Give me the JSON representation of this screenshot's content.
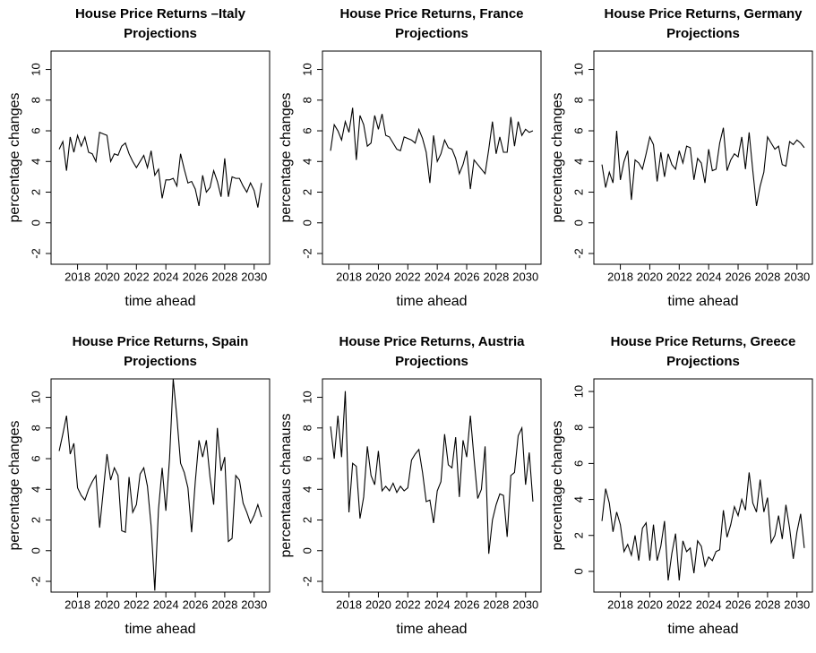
{
  "chart_data": [
    {
      "type": "line",
      "title": "House Price Returns –Italy",
      "subtitle": "Projections",
      "x_label": "time ahead",
      "y_label": "percentage changes",
      "color": "#000000",
      "x": [
        2016.75,
        2017,
        2017.25,
        2017.5,
        2017.75,
        2018,
        2018.25,
        2018.5,
        2018.75,
        2019,
        2019.25,
        2019.5,
        2019.75,
        2020,
        2020.25,
        2020.5,
        2020.75,
        2021,
        2021.25,
        2021.5,
        2021.75,
        2022,
        2022.25,
        2022.5,
        2022.75,
        2023,
        2023.25,
        2023.5,
        2023.75,
        2024,
        2024.25,
        2024.5,
        2024.75,
        2025,
        2025.25,
        2025.5,
        2025.75,
        2026,
        2026.25,
        2026.5,
        2026.75,
        2027,
        2027.25,
        2027.5,
        2027.75,
        2028,
        2028.25,
        2028.5,
        2028.75,
        2029,
        2029.25,
        2029.5,
        2029.75,
        2030,
        2030.25,
        2030.5
      ],
      "values": [
        4.8,
        5.3,
        3.4,
        5.6,
        4.6,
        5.7,
        5.0,
        5.6,
        4.6,
        4.5,
        4.0,
        5.9,
        5.8,
        5.7,
        4.0,
        4.5,
        4.4,
        5.0,
        5.2,
        4.5,
        4.0,
        3.6,
        4.0,
        4.4,
        3.6,
        4.7,
        3.1,
        3.5,
        1.6,
        2.8,
        2.8,
        2.9,
        2.4,
        4.5,
        3.5,
        2.6,
        2.7,
        2.2,
        1.1,
        3.1,
        2.0,
        2.3,
        3.4,
        2.7,
        1.7,
        4.2,
        1.7,
        3.0,
        2.9,
        2.9,
        2.4,
        2.0,
        2.6,
        2.1,
        1.0,
        2.6
      ],
      "xlim": [
        2016.2,
        2031.05
      ],
      "xticks": [
        2018,
        2020,
        2022,
        2024,
        2026,
        2028,
        2030
      ],
      "ylim": [
        -2.7,
        11.2
      ],
      "yticks": [
        -2,
        0,
        2,
        4,
        6,
        8,
        10
      ]
    },
    {
      "type": "line",
      "title": "House Price Returns, France",
      "subtitle": "Projections",
      "x_label": "time ahead",
      "y_label": "percentage changes",
      "color": "#000000",
      "x": [
        2016.75,
        2017,
        2017.25,
        2017.5,
        2017.75,
        2018,
        2018.25,
        2018.5,
        2018.75,
        2019,
        2019.25,
        2019.5,
        2019.75,
        2020,
        2020.25,
        2020.5,
        2020.75,
        2021,
        2021.25,
        2021.5,
        2021.75,
        2022,
        2022.25,
        2022.5,
        2022.75,
        2023,
        2023.25,
        2023.5,
        2023.75,
        2024,
        2024.25,
        2024.5,
        2024.75,
        2025,
        2025.25,
        2025.5,
        2025.75,
        2026,
        2026.25,
        2026.5,
        2026.75,
        2027,
        2027.25,
        2027.5,
        2027.75,
        2028,
        2028.25,
        2028.5,
        2028.75,
        2029,
        2029.25,
        2029.5,
        2029.75,
        2030,
        2030.25,
        2030.5
      ],
      "values": [
        4.7,
        6.4,
        6.0,
        5.4,
        6.6,
        5.9,
        7.5,
        4.1,
        7.0,
        6.4,
        5.0,
        5.2,
        7.0,
        6.1,
        7.1,
        5.7,
        5.6,
        5.2,
        4.8,
        4.7,
        5.6,
        5.5,
        5.4,
        5.2,
        6.1,
        5.5,
        4.6,
        2.6,
        5.7,
        4.0,
        4.5,
        5.4,
        4.9,
        4.8,
        4.2,
        3.2,
        3.8,
        4.7,
        2.2,
        4.1,
        3.8,
        3.5,
        3.2,
        4.8,
        6.6,
        4.5,
        5.6,
        4.6,
        4.6,
        6.9,
        5.0,
        6.6,
        5.7,
        6.1,
        5.9,
        6.0
      ],
      "xlim": [
        2016.2,
        2031.05
      ],
      "xticks": [
        2018,
        2020,
        2022,
        2024,
        2026,
        2028,
        2030
      ],
      "ylim": [
        -2.7,
        11.2
      ],
      "yticks": [
        -2,
        0,
        2,
        4,
        6,
        8,
        10
      ]
    },
    {
      "type": "line",
      "title": "House Price Returns, Germany",
      "subtitle": "Projections",
      "x_label": "time ahead",
      "y_label": "percentage changes",
      "color": "#000000",
      "x": [
        2016.75,
        2017,
        2017.25,
        2017.5,
        2017.75,
        2018,
        2018.25,
        2018.5,
        2018.75,
        2019,
        2019.25,
        2019.5,
        2019.75,
        2020,
        2020.25,
        2020.5,
        2020.75,
        2021,
        2021.25,
        2021.5,
        2021.75,
        2022,
        2022.25,
        2022.5,
        2022.75,
        2023,
        2023.25,
        2023.5,
        2023.75,
        2024,
        2024.25,
        2024.5,
        2024.75,
        2025,
        2025.25,
        2025.5,
        2025.75,
        2026,
        2026.25,
        2026.5,
        2026.75,
        2027,
        2027.25,
        2027.5,
        2027.75,
        2028,
        2028.25,
        2028.5,
        2028.75,
        2029,
        2029.25,
        2029.5,
        2029.75,
        2030,
        2030.25,
        2030.5
      ],
      "values": [
        3.8,
        2.3,
        3.3,
        2.6,
        6.0,
        2.8,
        4.0,
        4.7,
        1.5,
        4.1,
        3.9,
        3.5,
        4.5,
        5.6,
        5.1,
        2.7,
        4.6,
        3.0,
        4.5,
        3.8,
        3.5,
        4.7,
        3.9,
        5.0,
        4.9,
        2.8,
        4.2,
        3.9,
        2.6,
        4.8,
        3.4,
        3.5,
        5.2,
        6.2,
        3.4,
        4.1,
        4.5,
        4.3,
        5.6,
        3.5,
        5.9,
        3.4,
        1.1,
        2.4,
        3.3,
        5.6,
        5.2,
        4.8,
        5.0,
        3.8,
        3.7,
        5.3,
        5.1,
        5.4,
        5.2,
        4.9
      ],
      "xlim": [
        2016.2,
        2031.05
      ],
      "xticks": [
        2018,
        2020,
        2022,
        2024,
        2026,
        2028,
        2030
      ],
      "ylim": [
        -2.7,
        11.2
      ],
      "yticks": [
        -2,
        0,
        2,
        4,
        6,
        8,
        10
      ]
    },
    {
      "type": "line",
      "title": "House Price Returns, Spain",
      "subtitle": "Projections",
      "x_label": "time ahead",
      "y_label": "percentage changes",
      "color": "#000000",
      "x": [
        2016.75,
        2017,
        2017.25,
        2017.5,
        2017.75,
        2018,
        2018.25,
        2018.5,
        2018.75,
        2019,
        2019.25,
        2019.5,
        2019.75,
        2020,
        2020.25,
        2020.5,
        2020.75,
        2021,
        2021.25,
        2021.5,
        2021.75,
        2022,
        2022.25,
        2022.5,
        2022.75,
        2023,
        2023.25,
        2023.5,
        2023.75,
        2024,
        2024.25,
        2024.5,
        2024.75,
        2025,
        2025.25,
        2025.5,
        2025.75,
        2026,
        2026.25,
        2026.5,
        2026.75,
        2027,
        2027.25,
        2027.5,
        2027.75,
        2028,
        2028.25,
        2028.5,
        2028.75,
        2029,
        2029.25,
        2029.5,
        2029.75,
        2030,
        2030.25,
        2030.5
      ],
      "values": [
        6.5,
        7.6,
        8.8,
        6.3,
        7.0,
        4.1,
        3.6,
        3.3,
        4.0,
        4.5,
        4.9,
        1.5,
        3.9,
        6.3,
        4.6,
        5.4,
        4.9,
        1.3,
        1.2,
        4.8,
        2.5,
        3.0,
        5.0,
        5.4,
        4.2,
        1.6,
        -2.6,
        2.7,
        5.4,
        2.6,
        6.0,
        11.2,
        8.7,
        5.7,
        5.1,
        4.1,
        1.2,
        4.5,
        7.2,
        6.1,
        7.2,
        4.8,
        3.0,
        8.0,
        5.2,
        6.1,
        0.6,
        0.8,
        4.9,
        4.6,
        3.1,
        2.5,
        1.8,
        2.3,
        3.0,
        2.2
      ],
      "xlim": [
        2016.2,
        2031.05
      ],
      "xticks": [
        2018,
        2020,
        2022,
        2024,
        2026,
        2028,
        2030
      ],
      "ylim": [
        -2.7,
        11.2
      ],
      "yticks": [
        -2,
        0,
        2,
        4,
        6,
        8,
        10
      ]
    },
    {
      "type": "line",
      "title": "House Price Returns, Austria",
      "subtitle": "Projections",
      "x_label": "time ahead",
      "y_label": "percentaaus chanauss",
      "color": "#000000",
      "x": [
        2016.75,
        2017,
        2017.25,
        2017.5,
        2017.75,
        2018,
        2018.25,
        2018.5,
        2018.75,
        2019,
        2019.25,
        2019.5,
        2019.75,
        2020,
        2020.25,
        2020.5,
        2020.75,
        2021,
        2021.25,
        2021.5,
        2021.75,
        2022,
        2022.25,
        2022.5,
        2022.75,
        2023,
        2023.25,
        2023.5,
        2023.75,
        2024,
        2024.25,
        2024.5,
        2024.75,
        2025,
        2025.25,
        2025.5,
        2025.75,
        2026,
        2026.25,
        2026.5,
        2026.75,
        2027,
        2027.25,
        2027.5,
        2027.75,
        2028,
        2028.25,
        2028.5,
        2028.75,
        2029,
        2029.25,
        2029.5,
        2029.75,
        2030,
        2030.25,
        2030.5
      ],
      "values": [
        8.1,
        6.0,
        8.8,
        6.1,
        10.4,
        2.5,
        5.7,
        5.5,
        2.1,
        3.5,
        6.8,
        4.9,
        4.3,
        6.5,
        3.9,
        4.2,
        3.9,
        4.4,
        3.8,
        4.2,
        3.9,
        4.1,
        5.9,
        6.3,
        6.6,
        5.1,
        3.2,
        3.3,
        1.8,
        3.9,
        4.5,
        7.6,
        5.6,
        5.4,
        7.4,
        3.5,
        7.2,
        6.1,
        8.8,
        6.0,
        3.4,
        4.0,
        6.8,
        -0.2,
        2.0,
        3.0,
        3.7,
        3.6,
        0.9,
        4.9,
        5.1,
        7.5,
        8.0,
        4.3,
        6.4,
        3.2
      ],
      "xlim": [
        2016.2,
        2031.05
      ],
      "xticks": [
        2018,
        2020,
        2022,
        2024,
        2026,
        2028,
        2030
      ],
      "ylim": [
        -2.7,
        11.2
      ],
      "yticks": [
        -2,
        0,
        2,
        4,
        6,
        8,
        10
      ]
    },
    {
      "type": "line",
      "title": "House Price Returns, Greece",
      "subtitle": "Projections",
      "x_label": "time ahead",
      "y_label": "percentage changes",
      "color": "#000000",
      "x": [
        2016.75,
        2017,
        2017.25,
        2017.5,
        2017.75,
        2018,
        2018.25,
        2018.5,
        2018.75,
        2019,
        2019.25,
        2019.5,
        2019.75,
        2020,
        2020.25,
        2020.5,
        2020.75,
        2021,
        2021.25,
        2021.5,
        2021.75,
        2022,
        2022.25,
        2022.5,
        2022.75,
        2023,
        2023.25,
        2023.5,
        2023.75,
        2024,
        2024.25,
        2024.5,
        2024.75,
        2025,
        2025.25,
        2025.5,
        2025.75,
        2026,
        2026.25,
        2026.5,
        2026.75,
        2027,
        2027.25,
        2027.5,
        2027.75,
        2028,
        2028.25,
        2028.5,
        2028.75,
        2029,
        2029.25,
        2029.5,
        2029.75,
        2030,
        2030.25,
        2030.5
      ],
      "values": [
        2.8,
        4.6,
        3.8,
        2.2,
        3.3,
        2.6,
        1.1,
        1.5,
        0.9,
        2.0,
        0.6,
        2.4,
        2.7,
        0.6,
        2.6,
        0.6,
        1.4,
        2.8,
        -0.5,
        1.0,
        2.1,
        -0.5,
        1.7,
        1.1,
        1.3,
        -0.1,
        1.7,
        1.4,
        0.3,
        0.8,
        0.6,
        1.1,
        1.2,
        3.4,
        1.9,
        2.6,
        3.6,
        3.1,
        4.0,
        3.4,
        5.5,
        3.8,
        3.3,
        5.1,
        3.3,
        4.1,
        1.6,
        2.0,
        3.1,
        1.8,
        3.7,
        2.4,
        0.7,
        2.2,
        3.2,
        1.3
      ],
      "xlim": [
        2016.2,
        2031.05
      ],
      "xticks": [
        2018,
        2020,
        2022,
        2024,
        2026,
        2028,
        2030
      ],
      "ylim": [
        -1.15,
        10.7
      ],
      "yticks": [
        0,
        2,
        4,
        6,
        8,
        10
      ]
    }
  ]
}
